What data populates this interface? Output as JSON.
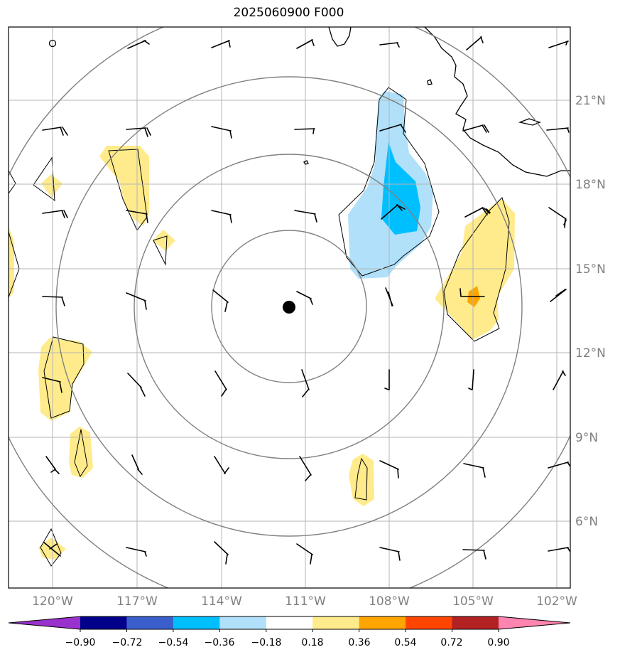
{
  "title": "2025060900 F000",
  "map": {
    "lat_labels": [
      "21°N",
      "18°N",
      "15°N",
      "12°N",
      "9°N",
      "6°N"
    ],
    "lon_labels": [
      "120°W",
      "117°W",
      "114°W",
      "111°W",
      "108°W",
      "105°W",
      "102°W"
    ],
    "center_marker": "storm-center-dot"
  },
  "colorbar": {
    "tick_labels": [
      "−0.90",
      "−0.72",
      "−0.54",
      "−0.36",
      "−0.18",
      "0.18",
      "0.36",
      "0.54",
      "0.72",
      "0.90"
    ],
    "colors": [
      "#9932cc",
      "#00008b",
      "#3a5fcd",
      "#00bfff",
      "#b0e0fa",
      "#ffffff",
      "#ffeb8b",
      "#ffa500",
      "#ff4500",
      "#b22222",
      "#ff85b0"
    ]
  }
}
